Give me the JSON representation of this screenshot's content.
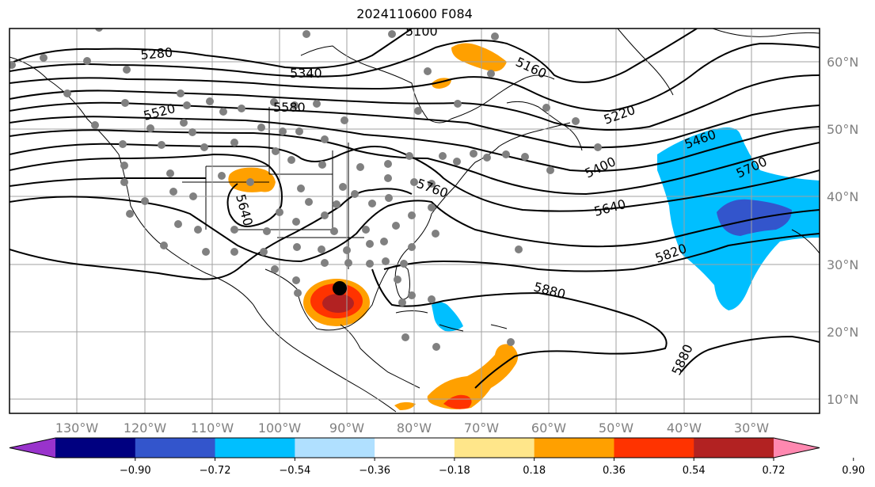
{
  "title": "2024110600 F084",
  "lon_labels": [
    "130°W",
    "120°W",
    "110°W",
    "100°W",
    "90°W",
    "80°W",
    "70°W",
    "60°W",
    "50°W",
    "40°W",
    "30°W"
  ],
  "lat_labels": [
    "60°N",
    "50°N",
    "40°N",
    "30°N",
    "20°N",
    "10°N"
  ],
  "contour_labels": [
    "5280",
    "5340",
    "5160",
    "5520",
    "5580",
    "5220",
    "5460",
    "5400",
    "5700",
    "5760",
    "5640",
    "5640",
    "5820",
    "5880",
    "5880",
    "5100"
  ],
  "colorbar": {
    "ticks": [
      "−0.90",
      "−0.72",
      "−0.54",
      "−0.36",
      "−0.18",
      "0.18",
      "0.36",
      "0.54",
      "0.72",
      "0.90"
    ],
    "colors": [
      "#9933cc",
      "#000080",
      "#3355cc",
      "#00bfff",
      "#b0e0ff",
      "#ffffff",
      "#ffe68a",
      "#ffa000",
      "#ff3300",
      "#b22222",
      "#ff88b0"
    ]
  },
  "colors": {
    "land_outline": "#000000",
    "grid": "#a0a0a0",
    "marker": "#808080",
    "center_marker": "#000000"
  }
}
